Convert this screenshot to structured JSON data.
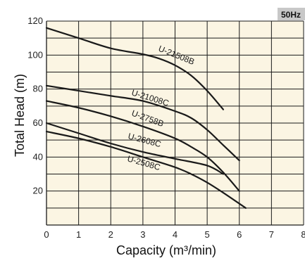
{
  "badge": "50Hz",
  "chart_data": {
    "type": "line",
    "xlabel": "Capacity (m³/min)",
    "ylabel": "Total Head (m)",
    "xlim": [
      0,
      8
    ],
    "ylim": [
      0,
      120
    ],
    "x_ticks": [
      "0",
      "1",
      "2",
      "3",
      "4",
      "5",
      "6",
      "7",
      "8"
    ],
    "y_ticks": [
      "20",
      "40",
      "60",
      "80",
      "100",
      "120"
    ],
    "grid": true,
    "background": "#fbf5e3",
    "line_color": "#1a1a1a",
    "series": [
      {
        "name": "U-21508B",
        "x": [
          0,
          1,
          2,
          3,
          3.5,
          4,
          4.5,
          5,
          5.5
        ],
        "y": [
          116,
          110,
          104,
          100.5,
          98,
          94,
          88,
          79,
          68
        ]
      },
      {
        "name": "U-21008C",
        "x": [
          0,
          1,
          2,
          3,
          4,
          4.5,
          5,
          5.5,
          6
        ],
        "y": [
          82,
          79,
          76,
          73,
          67,
          63,
          56,
          47,
          38
        ]
      },
      {
        "name": "U-2758B",
        "x": [
          0,
          1,
          2,
          3,
          4,
          4.5,
          5,
          5.5,
          6
        ],
        "y": [
          73,
          69,
          64,
          58,
          51,
          46,
          40,
          31,
          20
        ]
      },
      {
        "name": "U-2608C",
        "x": [
          0,
          1,
          2,
          3,
          4,
          5,
          5.5
        ],
        "y": [
          60,
          54,
          48,
          43,
          39,
          35,
          30
        ]
      },
      {
        "name": "U-2508C",
        "x": [
          0,
          1,
          2,
          3,
          4,
          4.5,
          5,
          5.5,
          6.2
        ],
        "y": [
          55,
          51,
          46,
          40,
          34,
          30,
          25,
          19,
          10
        ]
      }
    ]
  }
}
